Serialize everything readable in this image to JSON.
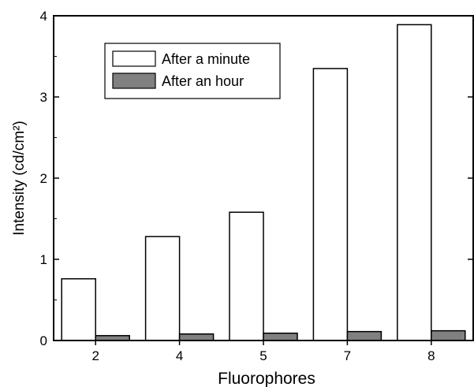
{
  "chart_data": {
    "type": "bar",
    "categories": [
      "2",
      "4",
      "5",
      "7",
      "8"
    ],
    "series": [
      {
        "name": "After a minute",
        "values": [
          0.76,
          1.28,
          1.58,
          3.35,
          3.89
        ],
        "color": "#ffffff"
      },
      {
        "name": "After an hour",
        "values": [
          0.06,
          0.08,
          0.09,
          0.11,
          0.12
        ],
        "color": "#808080"
      }
    ],
    "xlabel": "Fluorophores",
    "ylabel": "Intensity (cd/cm²)",
    "ylim": [
      0,
      4
    ],
    "yticks": [
      0,
      1,
      2,
      3,
      4
    ],
    "legend_position": "top-left",
    "grid": false
  }
}
